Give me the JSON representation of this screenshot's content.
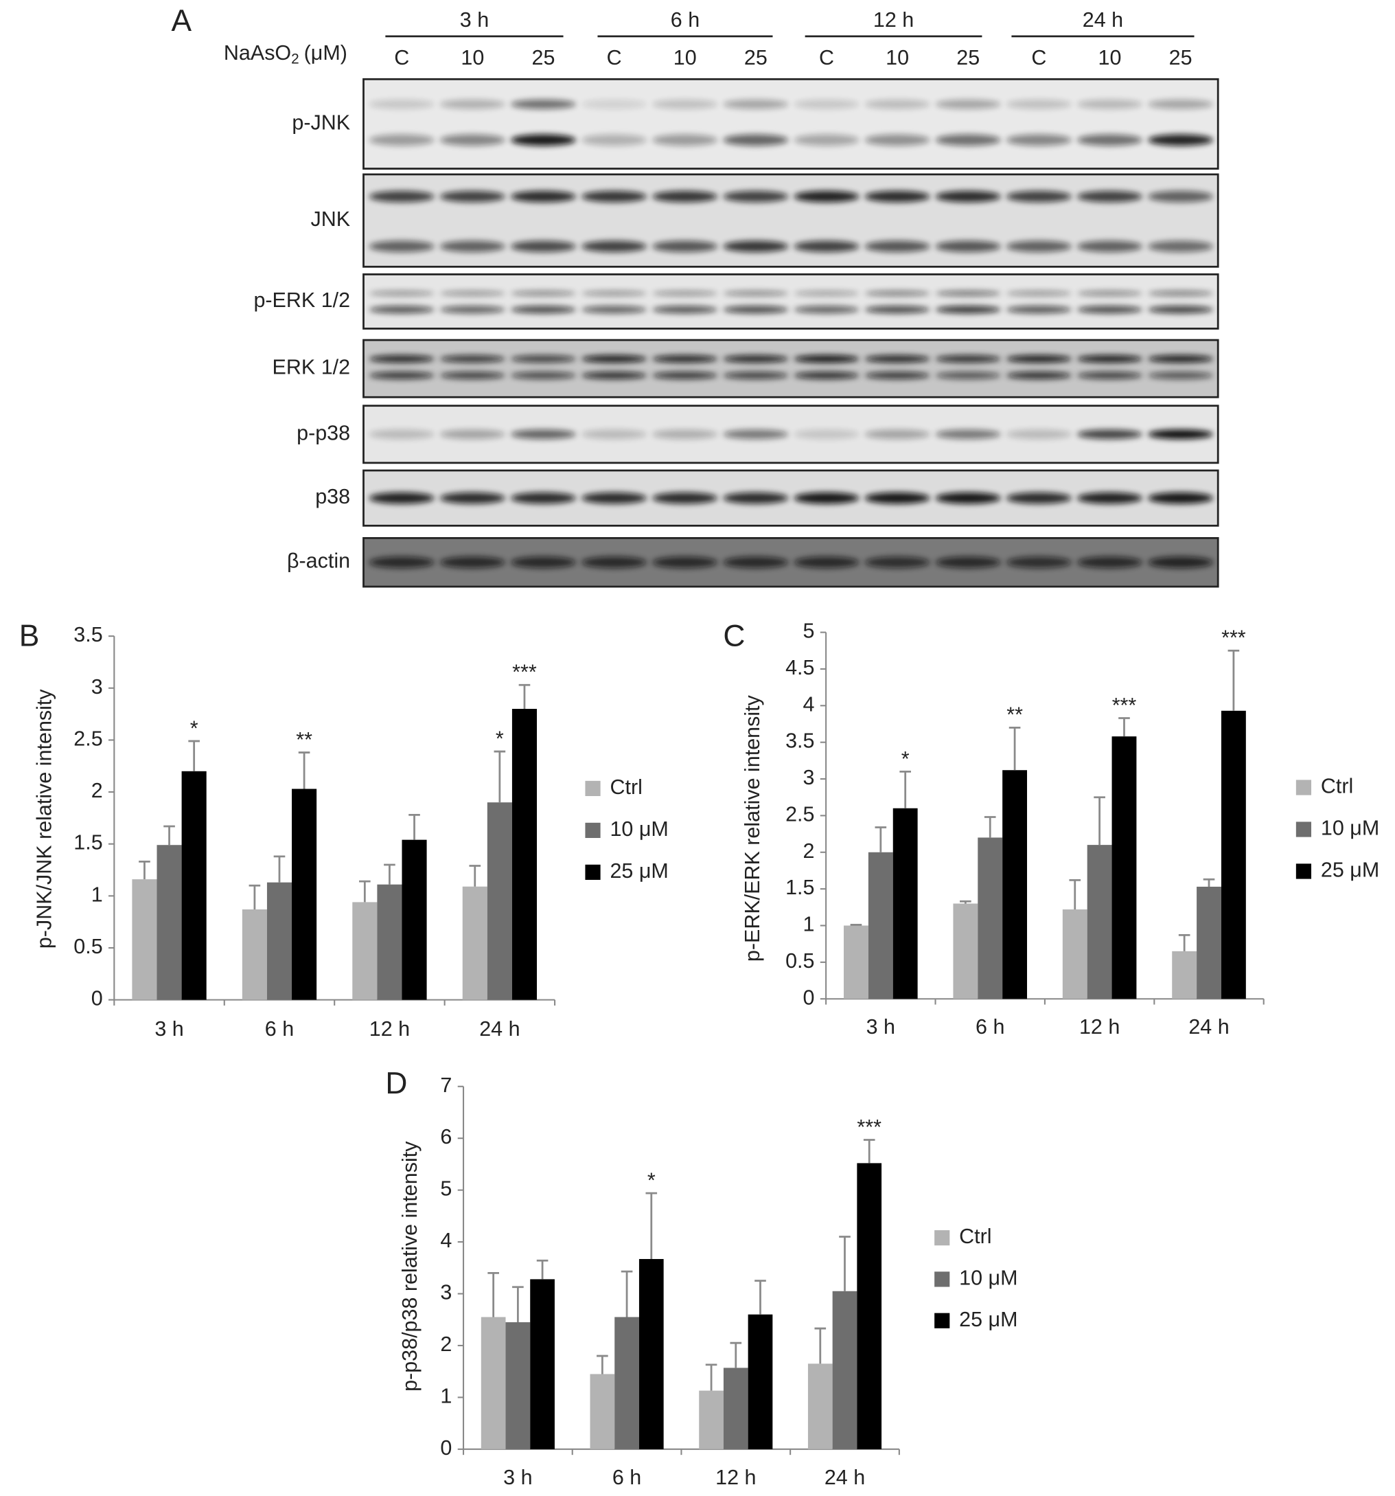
{
  "blot": {
    "panel_label": "A",
    "treatment_label": {
      "text": "NaAsO",
      "subscript": "2",
      "unit": "(μM)"
    },
    "time_points": [
      "3 h",
      "6 h",
      "12 h",
      "24 h"
    ],
    "lane_labels": [
      "C",
      "10",
      "25",
      "C",
      "10",
      "25",
      "C",
      "10",
      "25",
      "C",
      "10",
      "25"
    ],
    "rows": [
      "p-JNK",
      "JNK",
      "p-ERK 1/2",
      "ERK 1/2",
      "p-p38",
      "p38",
      "β-actin"
    ]
  },
  "chart_data": [
    {
      "type": "bar",
      "panel_label": "B",
      "ylabel": "p-JNK/JNK relative intensity",
      "categories": [
        "3 h",
        "6 h",
        "12 h",
        "24 h"
      ],
      "series": [
        {
          "name": "Ctrl",
          "color": "#b3b3b3",
          "values": [
            1.16,
            0.87,
            0.94,
            1.09
          ],
          "errors": [
            0.17,
            0.23,
            0.2,
            0.2
          ],
          "significance": [
            null,
            null,
            null,
            null
          ]
        },
        {
          "name": "10 μM",
          "color": "#6e6e6e",
          "values": [
            1.49,
            1.13,
            1.11,
            1.9
          ],
          "errors": [
            0.18,
            0.25,
            0.19,
            0.49
          ],
          "significance": [
            null,
            null,
            null,
            "*"
          ]
        },
        {
          "name": "25 μM",
          "color": "#000000",
          "values": [
            2.2,
            2.03,
            1.54,
            2.8
          ],
          "errors": [
            0.29,
            0.35,
            0.24,
            0.23
          ],
          "significance": [
            "*",
            "**",
            null,
            "***"
          ]
        }
      ],
      "ylim": [
        0,
        3.5
      ],
      "yticks": [
        0,
        0.5,
        1,
        1.5,
        2,
        2.5,
        3,
        3.5
      ]
    },
    {
      "type": "bar",
      "panel_label": "C",
      "ylabel": "p-ERK/ERK relative intensity",
      "categories": [
        "3 h",
        "6 h",
        "12 h",
        "24 h"
      ],
      "series": [
        {
          "name": "Ctrl",
          "color": "#b3b3b3",
          "values": [
            1.0,
            1.3,
            1.22,
            0.65
          ],
          "errors": [
            0.01,
            0.03,
            0.4,
            0.22
          ],
          "significance": [
            null,
            null,
            null,
            null
          ]
        },
        {
          "name": "10 μM",
          "color": "#6e6e6e",
          "values": [
            2.0,
            2.2,
            2.1,
            1.53
          ],
          "errors": [
            0.34,
            0.28,
            0.65,
            0.1
          ],
          "significance": [
            null,
            null,
            null,
            null
          ]
        },
        {
          "name": "25 μM",
          "color": "#000000",
          "values": [
            2.6,
            3.12,
            3.58,
            3.93
          ],
          "errors": [
            0.5,
            0.58,
            0.25,
            0.82
          ],
          "significance": [
            "*",
            "**",
            "***",
            "***"
          ]
        }
      ],
      "ylim": [
        0,
        5
      ],
      "yticks": [
        0,
        0.5,
        1,
        1.5,
        2,
        2.5,
        3,
        3.5,
        4,
        4.5,
        5
      ]
    },
    {
      "type": "bar",
      "panel_label": "D",
      "ylabel": "p-p38/p38 relative intensity",
      "categories": [
        "3 h",
        "6 h",
        "12 h",
        "24 h"
      ],
      "series": [
        {
          "name": "Ctrl",
          "color": "#b3b3b3",
          "values": [
            2.55,
            1.45,
            1.13,
            1.65
          ],
          "errors": [
            0.85,
            0.35,
            0.5,
            0.68
          ],
          "significance": [
            null,
            null,
            null,
            null
          ]
        },
        {
          "name": "10 μM",
          "color": "#6e6e6e",
          "values": [
            2.45,
            2.55,
            1.57,
            3.05
          ],
          "errors": [
            0.68,
            0.88,
            0.48,
            1.05
          ],
          "significance": [
            null,
            null,
            null,
            null
          ]
        },
        {
          "name": "25 μM",
          "color": "#000000",
          "values": [
            3.28,
            3.67,
            2.6,
            5.52
          ],
          "errors": [
            0.36,
            1.27,
            0.65,
            0.45
          ],
          "significance": [
            null,
            "*",
            null,
            "***"
          ]
        }
      ],
      "ylim": [
        0,
        7
      ],
      "yticks": [
        0,
        1,
        2,
        3,
        4,
        5,
        6,
        7
      ]
    }
  ]
}
